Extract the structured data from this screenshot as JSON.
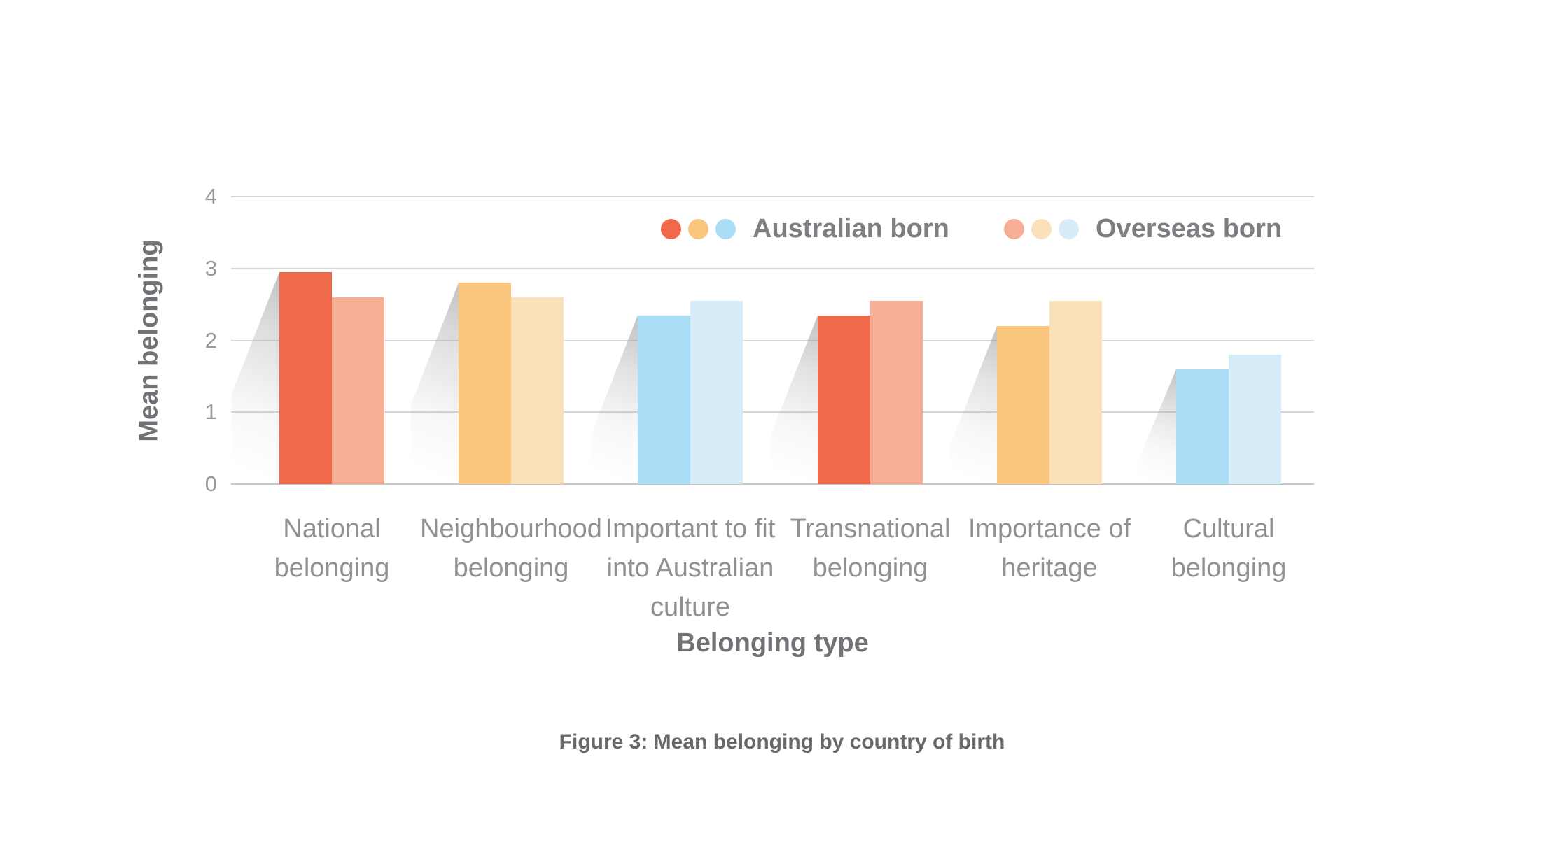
{
  "chart_data": {
    "type": "bar",
    "title": "Figure 3: Mean belonging by country of birth",
    "xlabel": "Belonging type",
    "ylabel": "Mean belonging",
    "ylim": [
      0,
      4
    ],
    "yticks": [
      4,
      3,
      2,
      1,
      0
    ],
    "grid": true,
    "legend_position": "top-center-inside",
    "categories": [
      "National belonging",
      "Neighbourhood belonging",
      "Important to fit into Australian culture",
      "Transnational belonging",
      "Importance of heritage",
      "Cultural belonging"
    ],
    "series": [
      {
        "name": "Australian born",
        "values": [
          2.95,
          2.8,
          2.35,
          2.35,
          2.2,
          1.6
        ]
      },
      {
        "name": "Overseas born",
        "values": [
          2.6,
          2.6,
          2.55,
          2.55,
          2.55,
          1.8
        ]
      }
    ],
    "palette": {
      "red": "#f0694b",
      "salmon": "#f6ae94",
      "orange": "#fac67d",
      "cream": "#fbe1ba",
      "blue": "#aaddf6",
      "lightblue": "#d6edf9"
    },
    "category_color_keys": [
      [
        "red",
        "salmon"
      ],
      [
        "orange",
        "cream"
      ],
      [
        "blue",
        "lightblue"
      ],
      [
        "red",
        "salmon"
      ],
      [
        "orange",
        "cream"
      ],
      [
        "blue",
        "lightblue"
      ]
    ],
    "legend": [
      {
        "label": "Australian born",
        "dot_color_keys": [
          "red",
          "orange",
          "blue"
        ]
      },
      {
        "label": "Overseas born",
        "dot_color_keys": [
          "salmon",
          "cream",
          "lightblue"
        ]
      }
    ]
  },
  "caption": "Figure 3: Mean belonging by country of birth"
}
